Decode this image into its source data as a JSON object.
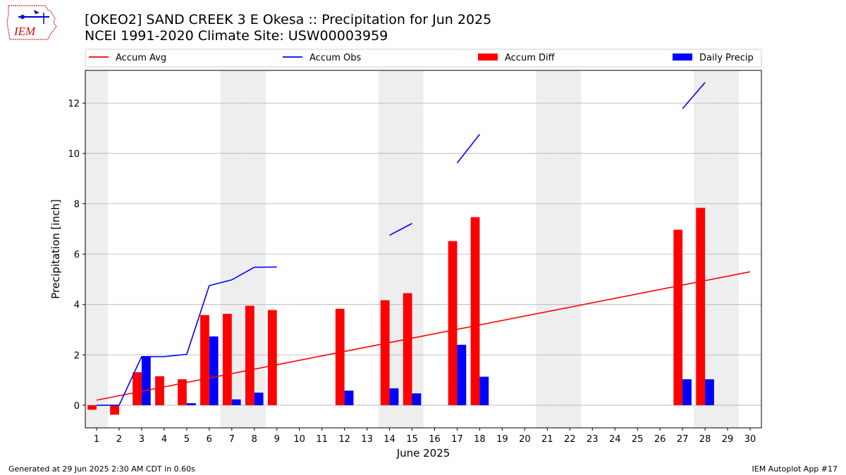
{
  "header": {
    "title": "[OKEO2] SAND CREEK 3 E Okesa :: Precipitation for Jun 2025",
    "subtitle": "NCEI 1991-2020 Climate Site: USW00003959"
  },
  "logo": {
    "text": "IEM",
    "icon": "iem-iowa-logo-icon"
  },
  "footer": {
    "left": "Generated at 29 Jun 2025 2:30 AM CDT in 0.60s",
    "right": "IEM Autoplot App #17"
  },
  "chart_data": {
    "type": "bar",
    "xlabel": "June 2025",
    "ylabel": "Precipitation [inch]",
    "xlim": [
      0.5,
      30.5
    ],
    "ylim": [
      -0.9,
      13.3
    ],
    "grid": true,
    "legend_position": "top",
    "weekend_shading_days": [
      1,
      7,
      8,
      14,
      15,
      21,
      22,
      28,
      29
    ],
    "days": [
      1,
      2,
      3,
      4,
      5,
      6,
      7,
      8,
      9,
      10,
      11,
      12,
      13,
      14,
      15,
      16,
      17,
      18,
      19,
      20,
      21,
      22,
      23,
      24,
      25,
      26,
      27,
      28,
      29,
      30
    ],
    "xticks": [
      "1",
      "2",
      "3",
      "4",
      "5",
      "6",
      "7",
      "8",
      "9",
      "10",
      "11",
      "12",
      "13",
      "14",
      "15",
      "16",
      "17",
      "18",
      "19",
      "20",
      "21",
      "22",
      "23",
      "24",
      "25",
      "26",
      "27",
      "28",
      "29",
      "30"
    ],
    "yticks": [
      "0",
      "2",
      "4",
      "6",
      "8",
      "10",
      "12"
    ],
    "ytick_values": [
      0,
      2,
      4,
      6,
      8,
      10,
      12
    ],
    "colors": {
      "accum_avg": "#ff0000",
      "accum_obs": "#0000ff",
      "accum_diff": "#ff0000",
      "daily_precip": "#0000ff",
      "shade": "#eeeeee",
      "grid": "#b0b0b0"
    },
    "legend": [
      {
        "label": "Accum Avg",
        "kind": "line",
        "color": "#ff0000"
      },
      {
        "label": "Accum Obs",
        "kind": "line",
        "color": "#0000ff"
      },
      {
        "label": "Accum Diff",
        "kind": "bar",
        "color": "#ff0000"
      },
      {
        "label": "Daily Precip",
        "kind": "bar",
        "color": "#0000ff"
      }
    ],
    "series": [
      {
        "name": "Accum Avg",
        "type": "line",
        "x": [
          1,
          30
        ],
        "values": [
          0.2,
          5.3
        ]
      },
      {
        "name": "Accum Obs",
        "type": "line",
        "values": [
          0.0,
          0.0,
          1.93,
          1.93,
          2.02,
          4.75,
          4.98,
          5.48,
          5.49,
          null,
          null,
          null,
          null,
          6.75,
          7.22,
          null,
          9.62,
          10.76,
          null,
          null,
          null,
          null,
          null,
          null,
          null,
          null,
          11.78,
          12.82,
          null,
          null
        ]
      },
      {
        "name": "Accum Diff",
        "type": "bar",
        "values": [
          -0.18,
          -0.38,
          1.31,
          1.15,
          1.03,
          3.58,
          3.63,
          3.95,
          3.78,
          null,
          null,
          3.83,
          null,
          4.17,
          4.45,
          null,
          6.52,
          7.47,
          null,
          null,
          null,
          null,
          null,
          null,
          null,
          null,
          6.97,
          7.84,
          null,
          null
        ]
      },
      {
        "name": "Daily Precip",
        "type": "bar",
        "values": [
          0.0,
          0.0,
          1.93,
          0.0,
          0.08,
          2.73,
          0.23,
          0.5,
          0.0,
          null,
          null,
          0.58,
          null,
          0.67,
          0.47,
          null,
          2.4,
          1.13,
          null,
          null,
          null,
          null,
          null,
          null,
          null,
          null,
          1.03,
          1.03,
          null,
          null
        ]
      }
    ]
  }
}
